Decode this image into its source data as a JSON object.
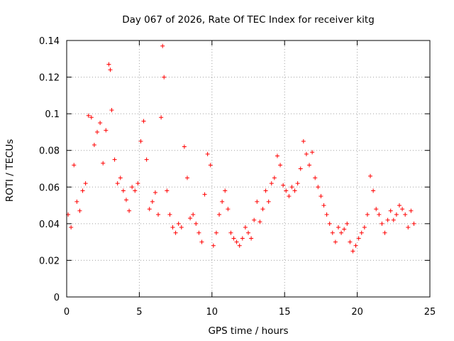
{
  "chart_data": {
    "type": "scatter",
    "title": "Day 067 of 2026, Rate Of TEC Index for receiver kitg",
    "xlabel": "GPS time / hours",
    "ylabel": "ROTI / TECUs",
    "xlim": [
      0,
      25
    ],
    "ylim": [
      0,
      0.14
    ],
    "xticks": [
      "0",
      "5",
      "10",
      "15",
      "20",
      "25"
    ],
    "yticks": [
      "0",
      "0.02",
      "0.04",
      "0.06",
      "0.08",
      "0.1",
      "0.12",
      "0.14"
    ],
    "grid": true,
    "marker": "+",
    "series": [
      {
        "name": "ROTI",
        "color": "#ff0000",
        "x": [
          0.1,
          0.3,
          0.5,
          0.7,
          0.9,
          1.1,
          1.3,
          1.5,
          1.7,
          1.9,
          2.1,
          2.3,
          2.5,
          2.7,
          2.9,
          3.0,
          3.1,
          3.3,
          3.5,
          3.7,
          3.9,
          4.1,
          4.3,
          4.5,
          4.7,
          4.9,
          5.1,
          5.3,
          5.5,
          5.7,
          5.9,
          6.1,
          6.3,
          6.5,
          6.6,
          6.7,
          6.9,
          7.1,
          7.3,
          7.5,
          7.7,
          7.9,
          8.1,
          8.3,
          8.5,
          8.7,
          8.9,
          9.1,
          9.3,
          9.5,
          9.7,
          9.9,
          10.1,
          10.3,
          10.5,
          10.7,
          10.9,
          11.1,
          11.3,
          11.5,
          11.7,
          11.9,
          12.1,
          12.3,
          12.5,
          12.7,
          12.9,
          13.1,
          13.3,
          13.5,
          13.7,
          13.9,
          14.1,
          14.3,
          14.5,
          14.7,
          14.9,
          15.1,
          15.3,
          15.5,
          15.7,
          15.9,
          16.1,
          16.3,
          16.5,
          16.7,
          16.9,
          17.1,
          17.3,
          17.5,
          17.7,
          17.9,
          18.1,
          18.3,
          18.5,
          18.7,
          18.9,
          19.1,
          19.3,
          19.5,
          19.7,
          19.9,
          20.1,
          20.3,
          20.5,
          20.7,
          20.9,
          21.1,
          21.3,
          21.5,
          21.7,
          21.9,
          22.1,
          22.3,
          22.5,
          22.7,
          22.9,
          23.1,
          23.3,
          23.5,
          23.7,
          23.9
        ],
        "y": [
          0.045,
          0.038,
          0.072,
          0.052,
          0.047,
          0.058,
          0.062,
          0.099,
          0.098,
          0.083,
          0.09,
          0.095,
          0.073,
          0.091,
          0.127,
          0.124,
          0.102,
          0.075,
          0.062,
          0.065,
          0.058,
          0.053,
          0.047,
          0.06,
          0.058,
          0.062,
          0.085,
          0.096,
          0.075,
          0.048,
          0.052,
          0.057,
          0.045,
          0.098,
          0.137,
          0.12,
          0.058,
          0.045,
          0.038,
          0.035,
          0.04,
          0.038,
          0.082,
          0.065,
          0.043,
          0.045,
          0.04,
          0.035,
          0.03,
          0.056,
          0.078,
          0.072,
          0.028,
          0.035,
          0.045,
          0.052,
          0.058,
          0.048,
          0.035,
          0.032,
          0.03,
          0.028,
          0.032,
          0.038,
          0.035,
          0.032,
          0.042,
          0.052,
          0.041,
          0.048,
          0.058,
          0.052,
          0.062,
          0.065,
          0.077,
          0.072,
          0.061,
          0.058,
          0.055,
          0.06,
          0.058,
          0.062,
          0.07,
          0.085,
          0.078,
          0.072,
          0.079,
          0.065,
          0.06,
          0.055,
          0.05,
          0.045,
          0.04,
          0.035,
          0.03,
          0.038,
          0.035,
          0.037,
          0.04,
          0.03,
          0.025,
          0.028,
          0.032,
          0.035,
          0.038,
          0.045,
          0.066,
          0.058,
          0.048,
          0.045,
          0.04,
          0.035,
          0.042,
          0.047,
          0.042,
          0.045,
          0.05,
          0.048,
          0.045,
          0.038,
          0.047,
          0.04
        ]
      }
    ]
  }
}
